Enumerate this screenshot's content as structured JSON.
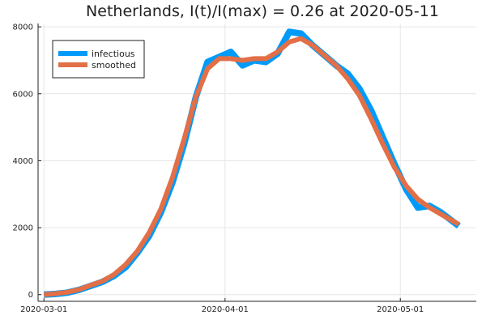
{
  "chart_data": {
    "type": "line",
    "title": "Netherlands,  I(t)/I(max) = 0.26 at 2020-05-11",
    "xlabel": "",
    "ylabel": "",
    "x_type": "date",
    "xlim": [
      "2020-02-29",
      "2020-05-14"
    ],
    "ylim": [
      -200,
      8100
    ],
    "x_ticks": [
      "2020-03-01",
      "2020-04-01",
      "2020-05-01"
    ],
    "y_ticks": [
      0,
      2000,
      4000,
      6000,
      8000
    ],
    "grid": true,
    "legend_position": "top-left",
    "x": [
      "2020-03-01",
      "2020-03-03",
      "2020-03-05",
      "2020-03-07",
      "2020-03-09",
      "2020-03-11",
      "2020-03-13",
      "2020-03-15",
      "2020-03-17",
      "2020-03-19",
      "2020-03-21",
      "2020-03-23",
      "2020-03-25",
      "2020-03-27",
      "2020-03-29",
      "2020-03-31",
      "2020-04-02",
      "2020-04-04",
      "2020-04-06",
      "2020-04-08",
      "2020-04-10",
      "2020-04-12",
      "2020-04-14",
      "2020-04-16",
      "2020-04-18",
      "2020-04-20",
      "2020-04-22",
      "2020-04-24",
      "2020-04-26",
      "2020-04-28",
      "2020-04-30",
      "2020-05-02",
      "2020-05-04",
      "2020-05-06",
      "2020-05-08",
      "2020-05-11"
    ],
    "series": [
      {
        "name": "infectious",
        "color": "#009af9",
        "values": [
          0,
          20,
          60,
          140,
          260,
          380,
          560,
          820,
          1250,
          1750,
          2450,
          3350,
          4500,
          5900,
          6950,
          7100,
          7250,
          6850,
          7000,
          6950,
          7200,
          7850,
          7800,
          7450,
          7150,
          6850,
          6600,
          6150,
          5500,
          4700,
          3900,
          3150,
          2600,
          2650,
          2450,
          2050
        ]
      },
      {
        "name": "smoothed",
        "color": "#e26f46",
        "values": [
          0,
          30,
          70,
          150,
          280,
          400,
          600,
          900,
          1300,
          1850,
          2550,
          3500,
          4650,
          5900,
          6750,
          7050,
          7050,
          7000,
          7050,
          7050,
          7250,
          7550,
          7650,
          7450,
          7150,
          6850,
          6450,
          5950,
          5250,
          4500,
          3800,
          3250,
          2850,
          2600,
          2400,
          2100
        ]
      }
    ]
  }
}
